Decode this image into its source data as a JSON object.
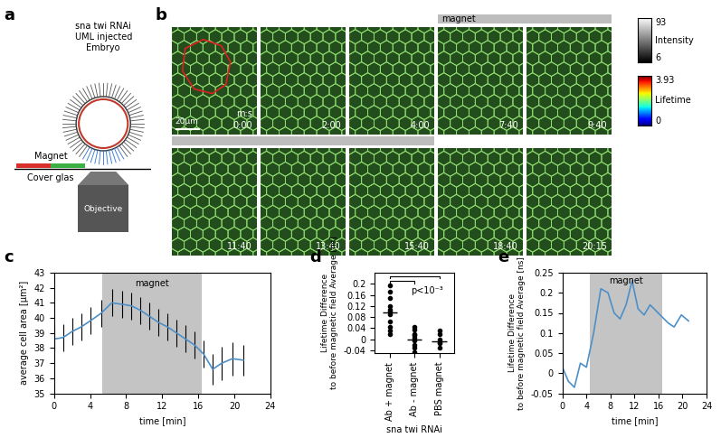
{
  "panel_labels": [
    "a",
    "b",
    "c",
    "d",
    "e"
  ],
  "schematic": {
    "embryo_labels": [
      "sna twi RNAi",
      "UML injected",
      "Embryo"
    ],
    "magnet": "Magnet",
    "cover_glass": "Cover glas",
    "objective": "Objective"
  },
  "images": {
    "times": [
      "0:00",
      "2:00",
      "4:00",
      "7:40",
      "9:40",
      "11:40",
      "13:40",
      "15:40",
      "18:40",
      "20:15"
    ],
    "time_unit": "m:s",
    "scale_bar": "20µm",
    "magnet_label": "magnet",
    "magnet_on": [
      false,
      false,
      false,
      true,
      true,
      true,
      true,
      true,
      false,
      false
    ],
    "intensity": {
      "label": "Intensity",
      "range": [
        6,
        93
      ]
    },
    "lifetime": {
      "label": "Lifetime",
      "range": [
        0,
        3.93
      ]
    }
  },
  "chart_data": [
    {
      "type": "line",
      "x_label": "time [min]",
      "y_label": "average cell area [µm²]",
      "x": [
        0,
        1,
        2,
        3,
        4,
        5.2,
        6.4,
        7.6,
        8.6,
        9.6,
        10.6,
        11.6,
        12.6,
        13.6,
        14.6,
        15.6,
        16.6,
        17.6,
        18.6,
        19.8,
        21
      ],
      "values": [
        38.6,
        38.7,
        39.1,
        39.4,
        39.8,
        40.3,
        41.0,
        40.9,
        40.8,
        40.5,
        40.1,
        39.7,
        39.4,
        39.0,
        38.6,
        38.2,
        37.6,
        36.6,
        37.0,
        37.3,
        37.2
      ],
      "error": [
        0.8,
        0.9,
        0.9,
        0.9,
        0.9,
        0.9,
        0.9,
        0.9,
        0.9,
        0.9,
        0.9,
        0.9,
        0.9,
        0.9,
        0.9,
        0.9,
        0.9,
        1.0,
        1.1,
        1.1,
        1.0
      ],
      "color": "#4d8fc7",
      "magnet_span": [
        5.3,
        16.4
      ],
      "annotation": "magnet",
      "xlim": [
        0,
        24
      ],
      "xticks": [
        0,
        4,
        8,
        12,
        16,
        20,
        24
      ],
      "ylim": [
        35,
        43
      ],
      "yticks": [
        35,
        36,
        37,
        38,
        39,
        40,
        41,
        42,
        43
      ]
    },
    {
      "type": "scatter",
      "x_label": "sna twi RNAi",
      "y_label": "Lifetime Difference\nto before magnetic field Average [ns]",
      "categories": [
        "Ab + magnet",
        "Ab - magnet",
        "PBS magnet"
      ],
      "values": [
        [
          0.195,
          0.17,
          0.15,
          0.12,
          0.105,
          0.1,
          0.09,
          0.065,
          0.045,
          0.03,
          0.02
        ],
        [
          0.045,
          0.035,
          0.02,
          0.015,
          0.005,
          -0.005,
          -0.02,
          -0.03,
          -0.045
        ],
        [
          0.03,
          0.02,
          0.0,
          -0.01,
          -0.015,
          -0.03
        ]
      ],
      "means": [
        0.097,
        0.0,
        -0.007
      ],
      "color": "#000000",
      "annotation": "p<10⁻³",
      "ylim": [
        -0.05,
        0.24
      ],
      "yticks": [
        -0.04,
        0,
        0.04,
        0.08,
        0.12,
        0.16,
        0.2
      ]
    },
    {
      "type": "line",
      "x_label": "time [min]",
      "y_label": "Lifetime Difference\nto before magnetic field Average [ns]",
      "x": [
        0,
        1,
        2,
        3,
        4,
        5.2,
        6.4,
        7.6,
        8.6,
        9.6,
        10.6,
        11.6,
        12.6,
        13.6,
        14.6,
        15.6,
        16.6,
        17.6,
        18.6,
        19.8,
        21
      ],
      "values": [
        0.015,
        -0.02,
        -0.035,
        0.025,
        0.015,
        0.1,
        0.21,
        0.2,
        0.15,
        0.135,
        0.17,
        0.23,
        0.16,
        0.145,
        0.17,
        0.155,
        0.14,
        0.125,
        0.115,
        0.145,
        0.13
      ],
      "color": "#4d8fc7",
      "magnet_span": [
        4.6,
        16.6
      ],
      "annotation": "magnet",
      "xlim": [
        0,
        24
      ],
      "xticks": [
        0,
        4,
        8,
        12,
        16,
        20,
        24
      ],
      "ylim": [
        -0.05,
        0.25
      ],
      "yticks": [
        -0.05,
        0,
        0.05,
        0.1,
        0.15,
        0.2,
        0.25
      ]
    }
  ]
}
